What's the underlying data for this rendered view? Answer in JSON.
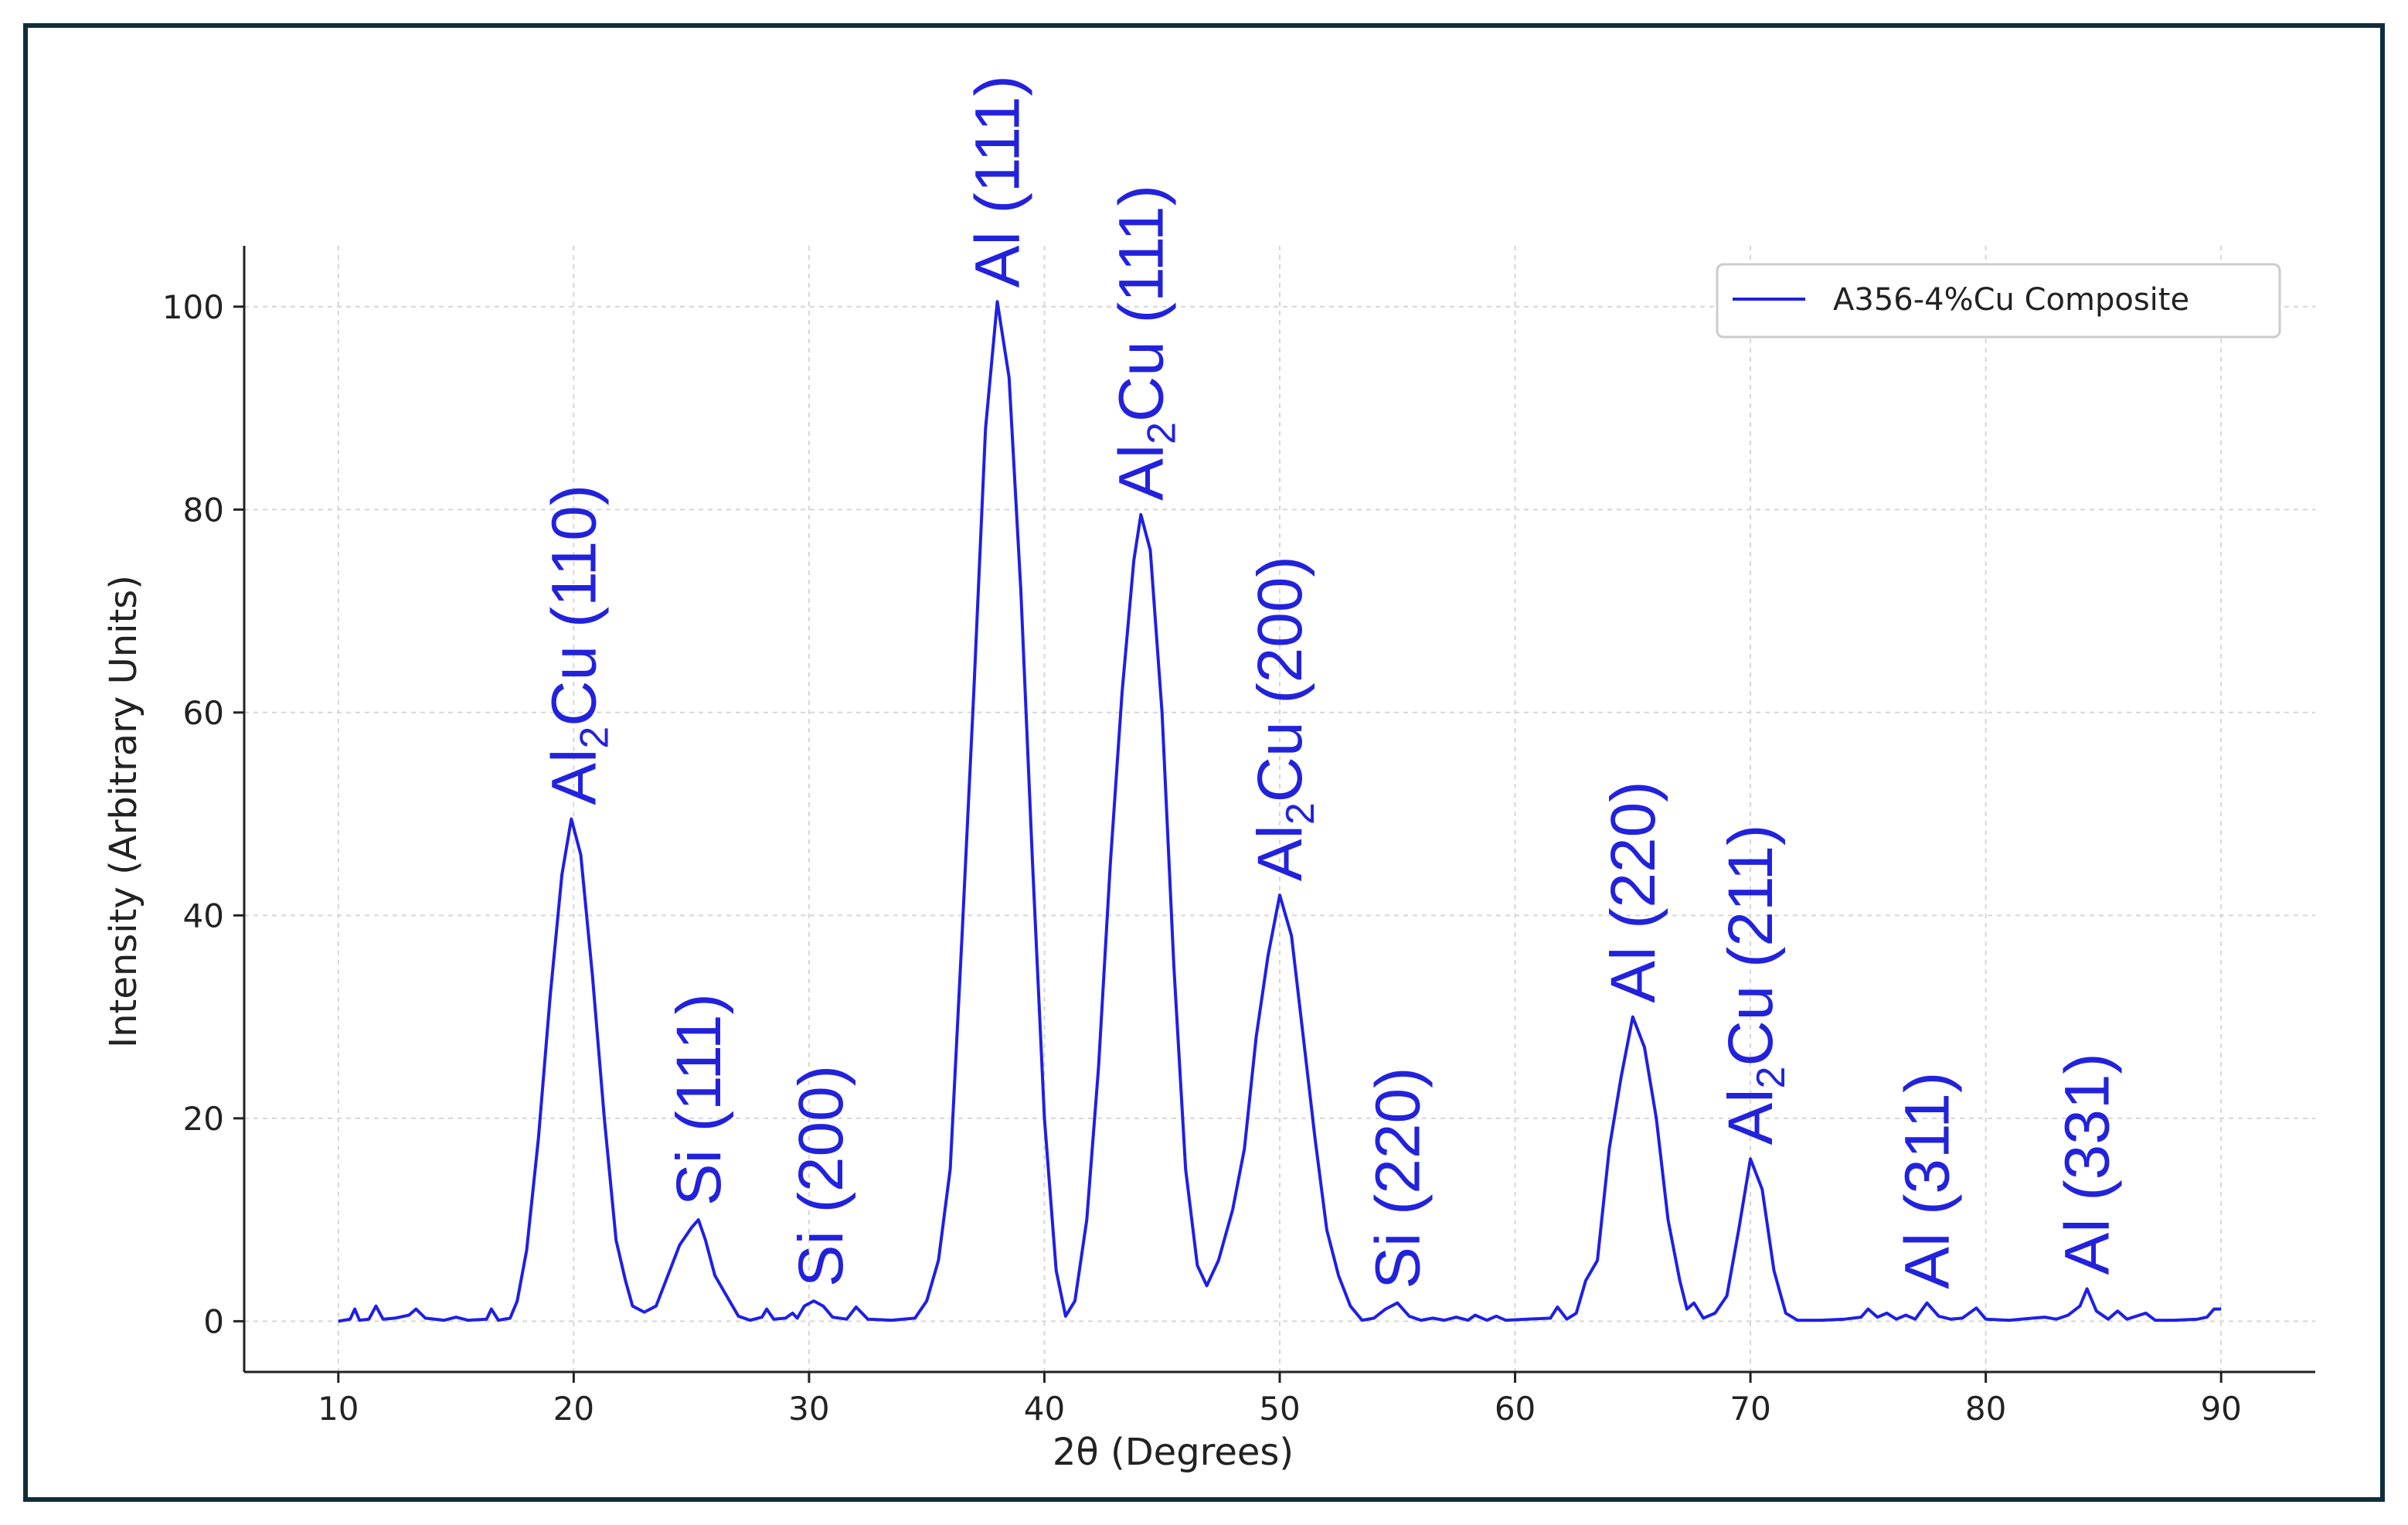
{
  "chart_data": {
    "type": "line",
    "xlabel": "2θ (Degrees)",
    "ylabel": "Intensity (Arbitrary Units)",
    "xlim": [
      6,
      94
    ],
    "ylim": [
      -5,
      106
    ],
    "x_ticks": [
      10,
      20,
      30,
      40,
      50,
      60,
      70,
      80,
      90
    ],
    "y_ticks": [
      0,
      20,
      40,
      60,
      80,
      100
    ],
    "grid": true,
    "legend_position": "top-right",
    "series": [
      {
        "name": "A356-4%Cu Composite",
        "color": "#1f1fe6",
        "points": [
          [
            10,
            0
          ],
          [
            10.5,
            0.2
          ],
          [
            10.7,
            1.2
          ],
          [
            10.9,
            0.1
          ],
          [
            11.3,
            0.2
          ],
          [
            11.6,
            1.5
          ],
          [
            11.9,
            0.2
          ],
          [
            12.4,
            0.3
          ],
          [
            13.0,
            0.6
          ],
          [
            13.3,
            1.2
          ],
          [
            13.7,
            0.3
          ],
          [
            14.5,
            0.1
          ],
          [
            15.0,
            0.4
          ],
          [
            15.5,
            0.1
          ],
          [
            16.3,
            0.2
          ],
          [
            16.5,
            1.2
          ],
          [
            16.8,
            0.1
          ],
          [
            17.3,
            0.3
          ],
          [
            17.6,
            2.0
          ],
          [
            18.0,
            7.0
          ],
          [
            18.5,
            18
          ],
          [
            19.0,
            32
          ],
          [
            19.5,
            44
          ],
          [
            19.9,
            49.5
          ],
          [
            20.3,
            46
          ],
          [
            20.8,
            34
          ],
          [
            21.3,
            20
          ],
          [
            21.8,
            8
          ],
          [
            22.2,
            4
          ],
          [
            22.5,
            1.5
          ],
          [
            23.0,
            0.9
          ],
          [
            23.5,
            1.5
          ],
          [
            24.0,
            4.5
          ],
          [
            24.5,
            7.5
          ],
          [
            25.0,
            9.2
          ],
          [
            25.3,
            10
          ],
          [
            25.6,
            8
          ],
          [
            26.0,
            4.5
          ],
          [
            26.5,
            2.5
          ],
          [
            27.0,
            0.5
          ],
          [
            27.5,
            0.1
          ],
          [
            28.0,
            0.4
          ],
          [
            28.2,
            1.2
          ],
          [
            28.5,
            0.2
          ],
          [
            29.0,
            0.3
          ],
          [
            29.3,
            0.8
          ],
          [
            29.5,
            0.3
          ],
          [
            29.8,
            1.5
          ],
          [
            30.2,
            2.0
          ],
          [
            30.6,
            1.5
          ],
          [
            31.0,
            0.4
          ],
          [
            31.6,
            0.2
          ],
          [
            32.0,
            1.4
          ],
          [
            32.5,
            0.2
          ],
          [
            33.5,
            0.1
          ],
          [
            34.5,
            0.3
          ],
          [
            35.0,
            2.0
          ],
          [
            35.5,
            6
          ],
          [
            36.0,
            15
          ],
          [
            36.5,
            38
          ],
          [
            37.0,
            62
          ],
          [
            37.5,
            88
          ],
          [
            38.0,
            100.5
          ],
          [
            38.5,
            93
          ],
          [
            39.0,
            72
          ],
          [
            39.5,
            45
          ],
          [
            40.0,
            20
          ],
          [
            40.5,
            5
          ],
          [
            40.9,
            0.5
          ],
          [
            41.3,
            2
          ],
          [
            41.8,
            10
          ],
          [
            42.3,
            25
          ],
          [
            42.8,
            45
          ],
          [
            43.3,
            62
          ],
          [
            43.8,
            75
          ],
          [
            44.1,
            79.5
          ],
          [
            44.5,
            76
          ],
          [
            45.0,
            60
          ],
          [
            45.5,
            35
          ],
          [
            46.0,
            15
          ],
          [
            46.5,
            5.5
          ],
          [
            46.9,
            3.5
          ],
          [
            47.4,
            6
          ],
          [
            48.0,
            11
          ],
          [
            48.5,
            17
          ],
          [
            49.0,
            28
          ],
          [
            49.5,
            36
          ],
          [
            50.0,
            42
          ],
          [
            50.5,
            38
          ],
          [
            51.0,
            28
          ],
          [
            51.5,
            18
          ],
          [
            52.0,
            9
          ],
          [
            52.5,
            4.5
          ],
          [
            53.0,
            1.5
          ],
          [
            53.5,
            0.1
          ],
          [
            54.0,
            0.3
          ],
          [
            54.5,
            1.2
          ],
          [
            55.0,
            1.8
          ],
          [
            55.5,
            0.5
          ],
          [
            56.0,
            0.1
          ],
          [
            56.5,
            0.3
          ],
          [
            57.0,
            0.1
          ],
          [
            57.5,
            0.4
          ],
          [
            58.0,
            0.1
          ],
          [
            58.3,
            0.6
          ],
          [
            58.8,
            0.1
          ],
          [
            59.2,
            0.5
          ],
          [
            59.6,
            0.1
          ],
          [
            60.5,
            0.2
          ],
          [
            61.5,
            0.3
          ],
          [
            61.8,
            1.4
          ],
          [
            62.2,
            0.2
          ],
          [
            62.6,
            0.8
          ],
          [
            63.0,
            4
          ],
          [
            63.5,
            6
          ],
          [
            64.0,
            17
          ],
          [
            64.5,
            24
          ],
          [
            65.0,
            30
          ],
          [
            65.5,
            27
          ],
          [
            66.0,
            20
          ],
          [
            66.5,
            10
          ],
          [
            67.0,
            4
          ],
          [
            67.3,
            1.2
          ],
          [
            67.6,
            1.8
          ],
          [
            68.0,
            0.3
          ],
          [
            68.5,
            0.8
          ],
          [
            69.0,
            2.5
          ],
          [
            69.5,
            9
          ],
          [
            70.0,
            16
          ],
          [
            70.5,
            13
          ],
          [
            71.0,
            5
          ],
          [
            71.5,
            0.8
          ],
          [
            72.0,
            0.1
          ],
          [
            73.0,
            0.1
          ],
          [
            74.0,
            0.2
          ],
          [
            74.7,
            0.4
          ],
          [
            75.0,
            1.2
          ],
          [
            75.4,
            0.4
          ],
          [
            75.8,
            0.8
          ],
          [
            76.2,
            0.2
          ],
          [
            76.6,
            0.6
          ],
          [
            77.0,
            0.2
          ],
          [
            77.5,
            1.8
          ],
          [
            78.0,
            0.5
          ],
          [
            78.5,
            0.2
          ],
          [
            79.0,
            0.3
          ],
          [
            79.6,
            1.3
          ],
          [
            80.0,
            0.2
          ],
          [
            81.0,
            0.1
          ],
          [
            82.0,
            0.3
          ],
          [
            82.5,
            0.4
          ],
          [
            83.0,
            0.2
          ],
          [
            83.5,
            0.6
          ],
          [
            84.0,
            1.5
          ],
          [
            84.3,
            3.2
          ],
          [
            84.7,
            1.0
          ],
          [
            85.2,
            0.2
          ],
          [
            85.6,
            1.0
          ],
          [
            86.0,
            0.2
          ],
          [
            86.8,
            0.8
          ],
          [
            87.2,
            0.1
          ],
          [
            88.0,
            0.1
          ],
          [
            89.0,
            0.2
          ],
          [
            89.4,
            0.4
          ],
          [
            89.7,
            1.2
          ],
          [
            90.0,
            1.2
          ]
        ]
      }
    ],
    "annotations": [
      {
        "x": 20.0,
        "y": 49.5,
        "base": "Al",
        "sub": "2",
        "rest": "Cu",
        "hkl": "(110)"
      },
      {
        "x": 25.3,
        "y": 10,
        "base": "Si",
        "sub": "",
        "rest": "",
        "hkl": "(111)"
      },
      {
        "x": 30.5,
        "y": 2,
        "base": "Si",
        "sub": "",
        "rest": "",
        "hkl": "(200)"
      },
      {
        "x": 38.0,
        "y": 100.5,
        "base": "Al",
        "sub": "",
        "rest": "",
        "hkl": "(111)"
      },
      {
        "x": 44.1,
        "y": 79.5,
        "base": "Al",
        "sub": "2",
        "rest": "Cu",
        "hkl": "(111)"
      },
      {
        "x": 50.0,
        "y": 42,
        "base": "Al",
        "sub": "2",
        "rest": "Cu",
        "hkl": "(200)"
      },
      {
        "x": 55.0,
        "y": 1.8,
        "base": "Si",
        "sub": "",
        "rest": "",
        "hkl": "(220)"
      },
      {
        "x": 65.0,
        "y": 30,
        "base": "Al",
        "sub": "",
        "rest": "",
        "hkl": "(220)"
      },
      {
        "x": 70.0,
        "y": 16,
        "base": "Al",
        "sub": "2",
        "rest": "Cu",
        "hkl": "(211)"
      },
      {
        "x": 77.5,
        "y": 1.8,
        "base": "Al",
        "sub": "",
        "rest": "",
        "hkl": "(311)"
      },
      {
        "x": 84.3,
        "y": 3.2,
        "base": "Al",
        "sub": "",
        "rest": "",
        "hkl": "(331)"
      }
    ]
  },
  "colors": {
    "series_line": "#1f1fe6",
    "label_text": "#2222dd",
    "grid": "#d6d6d6",
    "axis": "#222222",
    "frame_border": "#0f2e3c"
  }
}
